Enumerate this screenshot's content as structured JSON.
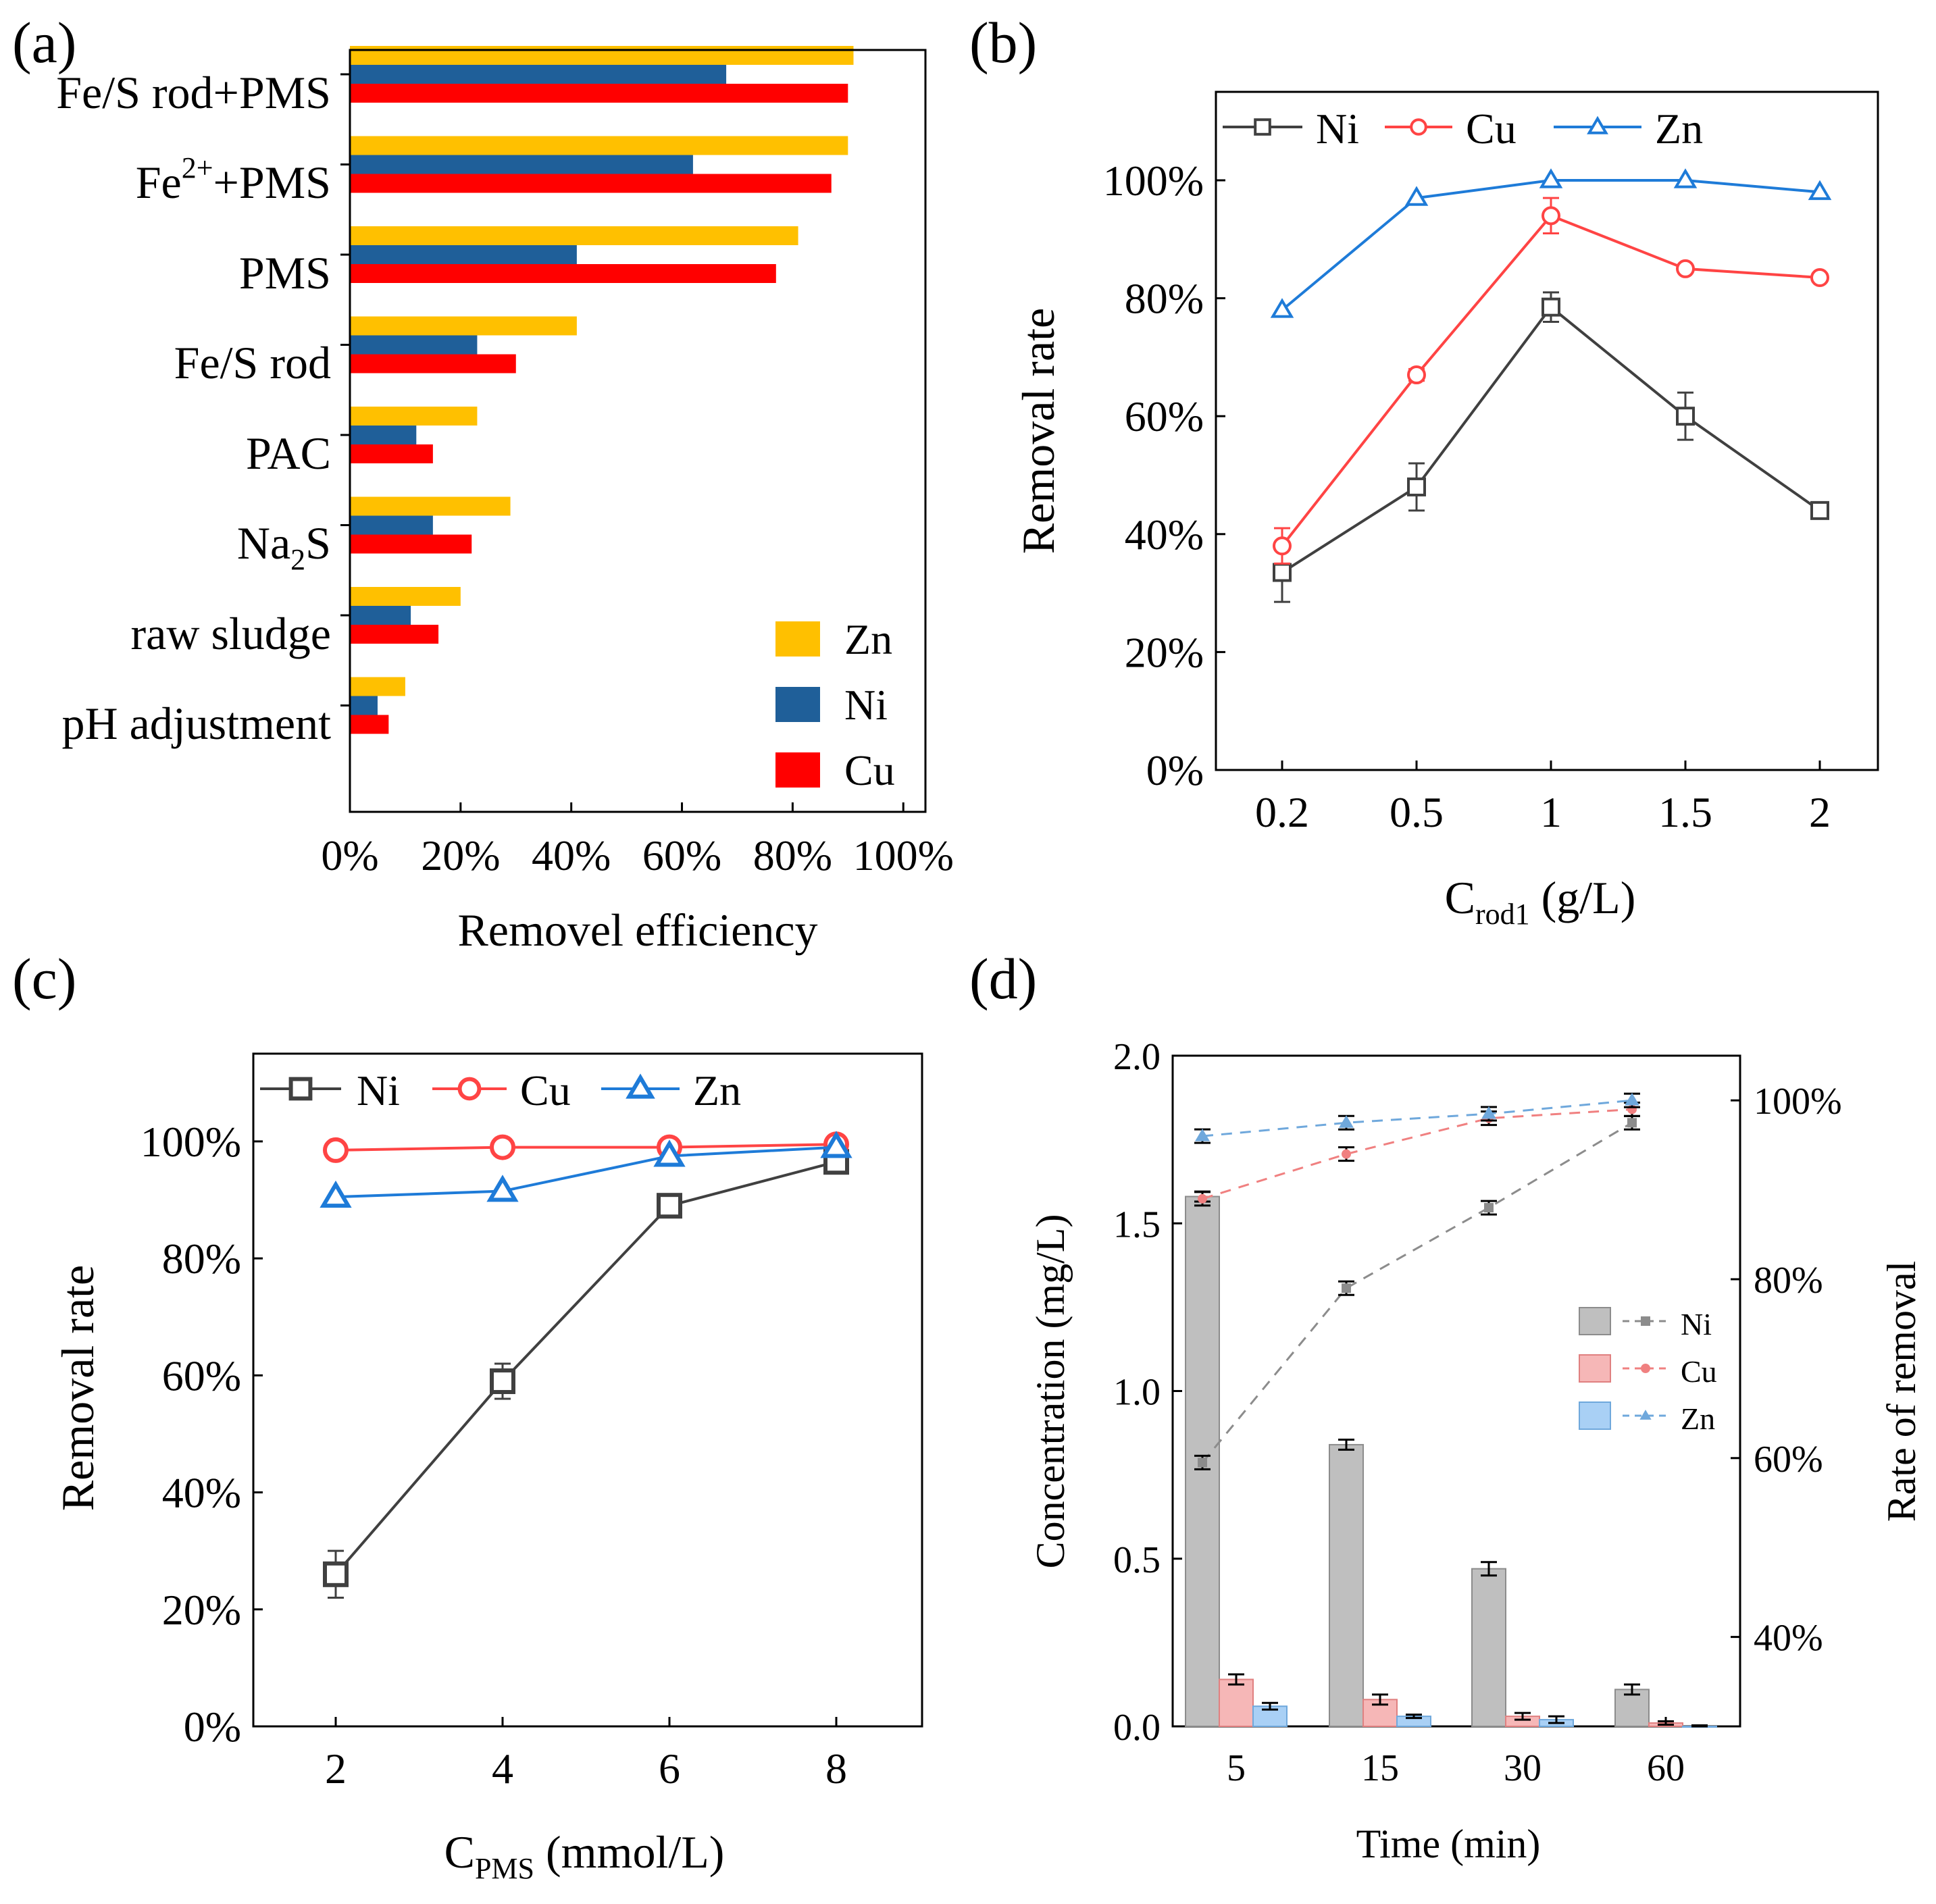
{
  "panels": {
    "a": {
      "letter": "(a)",
      "xlabel": "Removel efficiency",
      "categories": [
        "Fe/S rod+PMS",
        "Fe²⁺+PMS",
        "PMS",
        "Fe/S rod",
        "PAC",
        "Na₂S",
        "raw sludge",
        "pH adjustment"
      ],
      "category_labels": {
        "c0": "Fe/S rod+PMS",
        "c1_base": "Fe",
        "c1_sup": "2+",
        "c1_tail": "+PMS",
        "c2": "PMS",
        "c3": "Fe/S rod",
        "c4": "PAC",
        "c5_base": "Na",
        "c5_sub": "2",
        "c5_tail": "S",
        "c6": "raw sludge",
        "c7": "pH adjustment"
      },
      "xticks": [
        "0%",
        "20%",
        "40%",
        "60%",
        "80%",
        "100%"
      ],
      "legend": [
        "Zn",
        "Ni",
        "Cu"
      ]
    },
    "b": {
      "letter": "(b)",
      "ylabel": "Removal rate",
      "xlabel_base": "C",
      "xlabel_sub": "rod1",
      "xlabel_tail": " (g/L)",
      "xticks": [
        "0.2",
        "0.5",
        "1",
        "1.5",
        "2"
      ],
      "yticks": [
        "0%",
        "20%",
        "40%",
        "60%",
        "80%",
        "100%"
      ],
      "legend": [
        "Ni",
        "Cu",
        "Zn"
      ]
    },
    "c": {
      "letter": "(c)",
      "ylabel": "Removal rate",
      "xlabel_base": "C",
      "xlabel_sub": "PMS",
      "xlabel_tail": " (mmol/L)",
      "xticks": [
        "2",
        "4",
        "6",
        "8"
      ],
      "yticks": [
        "0%",
        "20%",
        "40%",
        "60%",
        "80%",
        "100%"
      ],
      "legend": [
        "Ni",
        "Cu",
        "Zn"
      ]
    },
    "d": {
      "letter": "(d)",
      "ylabel_left": "Concentration (mg/L)",
      "ylabel_right": "Rate of removal",
      "xlabel": "Time (min)",
      "xticks": [
        "5",
        "15",
        "30",
        "60"
      ],
      "yticks_left": [
        "0.0",
        "0.5",
        "1.0",
        "1.5",
        "2.0"
      ],
      "yticks_right": [
        "40%",
        "60%",
        "80%",
        "100%"
      ],
      "legend": [
        "Ni",
        "Cu",
        "Zn"
      ]
    }
  },
  "colors": {
    "zn_bar": "#FFC000",
    "ni_bar": "#1F5F99",
    "cu_bar": "#FF0000",
    "ni_line": "#404040",
    "cu_line": "#FF4444",
    "zn_line": "#1E7BD8",
    "ni_d": "#BFBFBF",
    "cu_d": "#F6B7B7",
    "zn_d": "#A9D0F5"
  },
  "chart_data": [
    {
      "panel": "a",
      "type": "bar",
      "orientation": "horizontal",
      "categories": [
        "Fe/S rod+PMS",
        "Fe²⁺+PMS",
        "PMS",
        "Fe/S rod",
        "PAC",
        "Na₂S",
        "raw sludge",
        "pH adjustment"
      ],
      "series": [
        {
          "name": "Zn",
          "values": [
            91,
            90,
            81,
            41,
            23,
            29,
            20,
            10
          ]
        },
        {
          "name": "Ni",
          "values": [
            68,
            62,
            41,
            23,
            12,
            15,
            11,
            5
          ]
        },
        {
          "name": "Cu",
          "values": [
            90,
            87,
            77,
            30,
            15,
            22,
            16,
            7
          ]
        }
      ],
      "xlabel": "Removel efficiency",
      "xlim": [
        0,
        104
      ],
      "legend_position": "lower-right"
    },
    {
      "panel": "b",
      "type": "line",
      "x": [
        "0.2",
        "0.5",
        "1",
        "1.5",
        "2"
      ],
      "series": [
        {
          "name": "Ni",
          "values": [
            33.5,
            48,
            78.5,
            60,
            44
          ],
          "errors": [
            5,
            4,
            2.5,
            4,
            0.5
          ]
        },
        {
          "name": "Cu",
          "values": [
            38,
            67,
            94,
            85,
            83.5
          ],
          "errors": [
            3,
            1,
            3,
            0.5,
            0.5
          ]
        },
        {
          "name": "Zn",
          "values": [
            78,
            97,
            100,
            100,
            98
          ],
          "errors": [
            0.3,
            0.3,
            0.3,
            0.3,
            0.3
          ]
        }
      ],
      "xlabel": "C_rod1 (g/L)",
      "ylabel": "Removal rate",
      "ylim": [
        0,
        115
      ],
      "legend_position": "top"
    },
    {
      "panel": "c",
      "type": "line",
      "x": [
        "2",
        "4",
        "6",
        "8"
      ],
      "series": [
        {
          "name": "Ni",
          "values": [
            26,
            59,
            89,
            96.5
          ],
          "errors": [
            4,
            3,
            0.5,
            0.5
          ]
        },
        {
          "name": "Cu",
          "values": [
            98.5,
            99,
            99,
            99.5
          ],
          "errors": [
            0.3,
            0.3,
            0.3,
            0.3
          ]
        },
        {
          "name": "Zn",
          "values": [
            90.5,
            91.5,
            97.5,
            99
          ],
          "errors": [
            0.3,
            0.3,
            0.3,
            0.3
          ]
        }
      ],
      "xlabel": "C_PMS (mmol/L)",
      "ylabel": "Removal rate",
      "ylim": [
        0,
        115
      ],
      "legend_position": "top"
    },
    {
      "panel": "d",
      "type": "bar",
      "categories": [
        "5",
        "15",
        "30",
        "60"
      ],
      "series": [
        {
          "name": "Ni",
          "values": [
            1.58,
            0.84,
            0.47,
            0.11
          ],
          "errors": [
            0.015,
            0.015,
            0.02,
            0.015
          ]
        },
        {
          "name": "Cu",
          "values": [
            0.14,
            0.08,
            0.03,
            0.01
          ],
          "errors": [
            0.015,
            0.015,
            0.01,
            0.005
          ]
        },
        {
          "name": "Zn",
          "values": [
            0.06,
            0.03,
            0.02,
            0.0
          ],
          "errors": [
            0.01,
            0.005,
            0.01,
            0.003
          ]
        }
      ],
      "ylabel": "Concentration (mg/L)",
      "ylim": [
        0,
        2.0
      ],
      "secondary_axis": {
        "type": "line",
        "ylabel": "Rate of removal",
        "ylim": [
          30,
          105
        ],
        "series": [
          {
            "name": "Ni",
            "values": [
              59.5,
              79,
              88,
              97.5
            ]
          },
          {
            "name": "Cu",
            "values": [
              89,
              94,
              98,
              99
            ]
          },
          {
            "name": "Zn",
            "values": [
              96,
              97.5,
              98.5,
              100
            ]
          }
        ]
      },
      "xlabel": "Time (min)",
      "legend_position": "right"
    }
  ]
}
